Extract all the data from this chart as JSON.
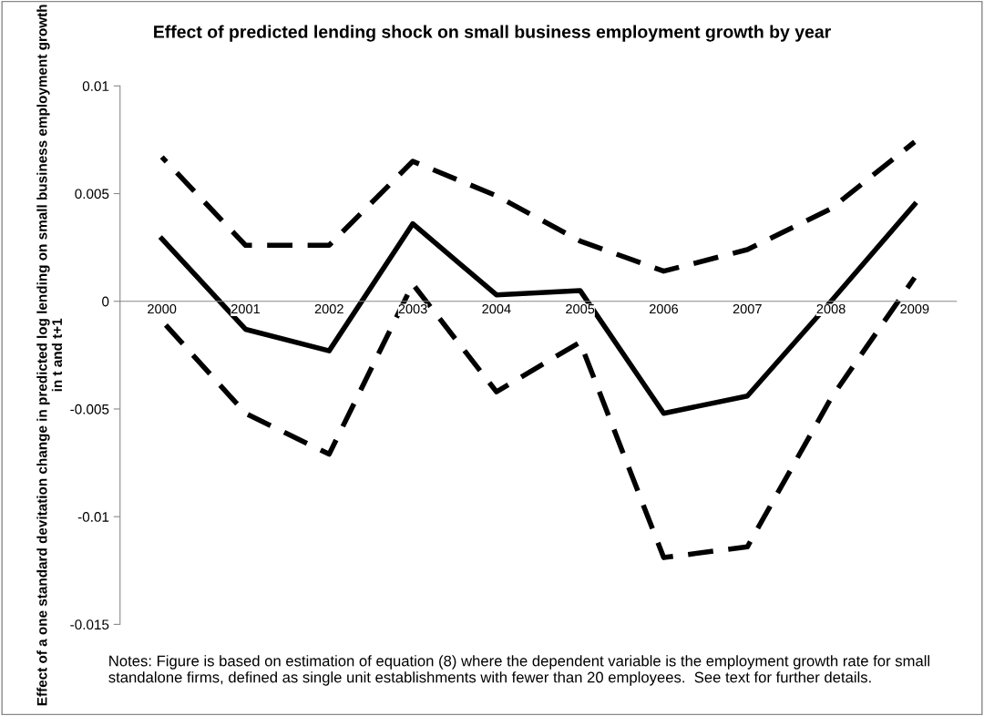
{
  "chart_data": {
    "type": "line",
    "title": "Effect of predicted lending shock on small business employment growth by year",
    "ylabel": "Effect of a one standard devitation change in predicted log lending on small business employment growth in t and t+1",
    "categories": [
      "2000",
      "2001",
      "2002",
      "2003",
      "2004",
      "2005",
      "2006",
      "2007",
      "2008",
      "2009"
    ],
    "series": [
      {
        "color": "#000000",
        "line_style": "solid",
        "values": [
          0.0029,
          -0.0013,
          -0.0023,
          0.0036,
          0.0003,
          0.0005,
          -0.0052,
          -0.0044,
          0.0,
          0.0045
        ]
      },
      {
        "color": "#000000",
        "line_style": "dashed",
        "values": [
          0.0067,
          0.0026,
          0.0026,
          0.0065,
          0.0049,
          0.0028,
          0.0014,
          0.0024,
          0.0043,
          0.0074
        ]
      },
      {
        "color": "#000000",
        "line_style": "dashed",
        "values": [
          -0.0009,
          -0.0052,
          -0.0071,
          0.0008,
          -0.0042,
          -0.0019,
          -0.0119,
          -0.0114,
          -0.0045,
          0.0011
        ]
      }
    ],
    "ylim": [
      -0.015,
      0.01
    ],
    "yticks": [
      -0.015,
      -0.01,
      -0.005,
      0,
      0.005,
      0.01
    ],
    "grid": false,
    "legend": false,
    "marker": "none",
    "annotations": [
      "Notes: Figure is based on estimation of equation (8) where the dependent variable is the employment growth rate for small standalone firms, defined as single unit establishments with fewer than 20 employees.  See text for further details."
    ]
  }
}
